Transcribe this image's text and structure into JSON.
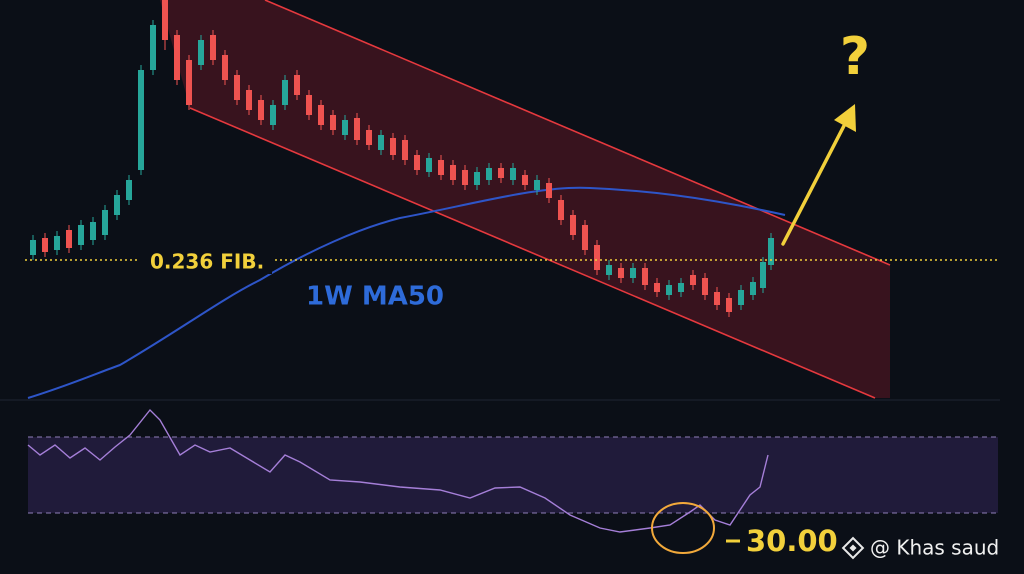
{
  "fib_label": "0.236 FIB.",
  "ma_label": "1W MA50",
  "question": "?",
  "rsi_level": "30.00",
  "watermark": "@ Khas saud"
}
